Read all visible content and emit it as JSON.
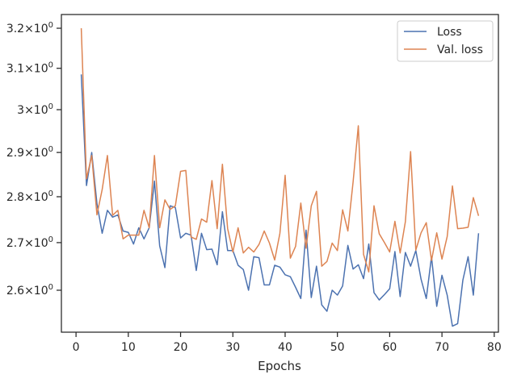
{
  "chart_data": {
    "type": "line",
    "title": "",
    "xlabel": "Epochs",
    "ylabel": "",
    "xlim": [
      -2.8,
      80.8
    ],
    "ylim": [
      2.515,
      3.235
    ],
    "y_scale": "log",
    "grid": false,
    "legend_position": "top-right",
    "x_ticks": [
      0,
      10,
      20,
      30,
      40,
      50,
      60,
      70,
      80
    ],
    "x_tick_labels": [
      "0",
      "10",
      "20",
      "30",
      "40",
      "50",
      "60",
      "70",
      "80"
    ],
    "y_ticks": [
      {
        "value": 2.6,
        "base": "2.6",
        "exp": "0"
      },
      {
        "value": 2.7,
        "base": "2.7",
        "exp": "0"
      },
      {
        "value": 2.8,
        "base": "2.8",
        "exp": "0"
      },
      {
        "value": 2.9,
        "base": "2.9",
        "exp": "0"
      },
      {
        "value": 3.0,
        "base": "3",
        "exp": "0"
      },
      {
        "value": 3.1,
        "base": "3.1",
        "exp": "0"
      },
      {
        "value": 3.2,
        "base": "3.2",
        "exp": "0"
      }
    ],
    "y_tick_times": "×10",
    "series": [
      {
        "name": "Loss",
        "color": "#4c72b0",
        "x": [
          1,
          2,
          3,
          4,
          5,
          6,
          7,
          8,
          9,
          10,
          11,
          12,
          13,
          14,
          15,
          16,
          17,
          18,
          19,
          20,
          21,
          22,
          23,
          24,
          25,
          26,
          27,
          28,
          29,
          30,
          31,
          32,
          33,
          34,
          35,
          36,
          37,
          38,
          39,
          40,
          41,
          42,
          43,
          44,
          45,
          46,
          47,
          48,
          49,
          50,
          51,
          52,
          53,
          54,
          55,
          56,
          57,
          58,
          59,
          60,
          61,
          62,
          63,
          64,
          65,
          66,
          67,
          68,
          69,
          70,
          71,
          72,
          73,
          74,
          75,
          76,
          77
        ],
        "values": [
          3.085,
          2.825,
          2.9,
          2.785,
          2.72,
          2.77,
          2.755,
          2.76,
          2.725,
          2.722,
          2.697,
          2.732,
          2.708,
          2.732,
          2.835,
          2.693,
          2.647,
          2.78,
          2.776,
          2.71,
          2.72,
          2.716,
          2.641,
          2.72,
          2.685,
          2.686,
          2.653,
          2.767,
          2.683,
          2.683,
          2.652,
          2.643,
          2.6,
          2.67,
          2.668,
          2.611,
          2.611,
          2.652,
          2.648,
          2.632,
          2.628,
          2.606,
          2.583,
          2.727,
          2.585,
          2.65,
          2.57,
          2.557,
          2.6,
          2.59,
          2.609,
          2.694,
          2.644,
          2.653,
          2.624,
          2.697,
          2.595,
          2.58,
          2.591,
          2.603,
          2.681,
          2.587,
          2.679,
          2.65,
          2.683,
          2.623,
          2.583,
          2.67,
          2.567,
          2.631,
          2.59,
          2.527,
          2.532,
          2.621,
          2.67,
          2.59,
          2.72
        ]
      },
      {
        "name": "Val. loss",
        "color": "#dd8452",
        "x": [
          1,
          2,
          3,
          4,
          5,
          6,
          7,
          8,
          9,
          10,
          11,
          12,
          13,
          14,
          15,
          16,
          17,
          18,
          19,
          20,
          21,
          22,
          23,
          24,
          25,
          26,
          27,
          28,
          29,
          30,
          31,
          32,
          33,
          34,
          35,
          36,
          37,
          38,
          39,
          40,
          41,
          42,
          43,
          44,
          45,
          46,
          47,
          48,
          49,
          50,
          51,
          52,
          53,
          54,
          55,
          56,
          57,
          58,
          59,
          60,
          61,
          62,
          63,
          64,
          65,
          66,
          67,
          68,
          69,
          70,
          71,
          72,
          73,
          74,
          75,
          76,
          77
        ],
        "values": [
          3.2,
          2.84,
          2.893,
          2.76,
          2.816,
          2.893,
          2.759,
          2.77,
          2.708,
          2.716,
          2.716,
          2.716,
          2.77,
          2.732,
          2.893,
          2.732,
          2.793,
          2.772,
          2.78,
          2.857,
          2.859,
          2.712,
          2.707,
          2.751,
          2.744,
          2.836,
          2.73,
          2.873,
          2.73,
          2.68,
          2.732,
          2.678,
          2.69,
          2.68,
          2.696,
          2.725,
          2.699,
          2.663,
          2.72,
          2.848,
          2.667,
          2.692,
          2.786,
          2.688,
          2.78,
          2.812,
          2.65,
          2.66,
          2.699,
          2.683,
          2.771,
          2.725,
          2.833,
          2.962,
          2.675,
          2.638,
          2.78,
          2.719,
          2.7,
          2.68,
          2.746,
          2.678,
          2.745,
          2.902,
          2.684,
          2.721,
          2.743,
          2.662,
          2.721,
          2.665,
          2.713,
          2.824,
          2.73,
          2.731,
          2.733,
          2.798,
          2.758
        ]
      }
    ]
  }
}
